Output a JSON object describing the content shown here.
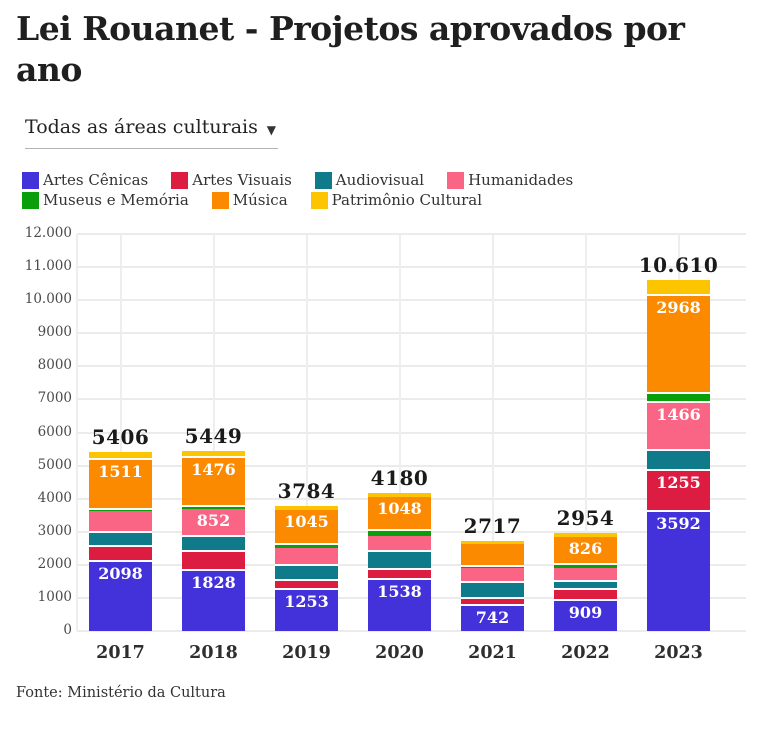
{
  "header": {
    "title": "Lei Rouanet - Projetos aprovados por ano"
  },
  "filter": {
    "value": "Todas as áreas culturais",
    "arrow_icon": "▼"
  },
  "footer": {
    "source": "Fonte: Ministério da Cultura"
  },
  "colors": {
    "artes_cenicas": "#4331d9",
    "artes_visuais": "#dc1c40",
    "audiovisual": "#0f7a8a",
    "humanidades": "#fa6585",
    "museus_memoria": "#0b9e0b",
    "musica": "#fb8a00",
    "patrimonio_cultural": "#fcc500",
    "grid": "#ebebeb",
    "text": "#222222"
  },
  "chart_data": {
    "type": "bar",
    "stacked": true,
    "title": "Lei Rouanet - Projetos aprovados por ano",
    "xlabel": "",
    "ylabel": "",
    "ylim": [
      0,
      12000
    ],
    "grid": true,
    "legend_position": "top",
    "categories": [
      "2017",
      "2018",
      "2019",
      "2020",
      "2021",
      "2022",
      "2023"
    ],
    "series": [
      {
        "name": "Artes Cênicas",
        "color": "#4331d9",
        "values": [
          2098,
          1828,
          1253,
          1538,
          742,
          909,
          3592
        ]
      },
      {
        "name": "Artes Visuais",
        "color": "#dc1c40",
        "values": [
          455,
          550,
          250,
          308,
          235,
          337,
          1255
        ]
      },
      {
        "name": "Audiovisual",
        "color": "#0f7a8a",
        "values": [
          410,
          455,
          470,
          545,
          470,
          242,
          590
        ]
      },
      {
        "name": "Humanidades",
        "color": "#fa6585",
        "values": [
          660,
          852,
          535,
          495,
          470,
          423,
          1466
        ]
      },
      {
        "name": "Museus e Memória",
        "color": "#0b9e0b",
        "values": [
          30,
          58,
          101,
          122,
          25,
          98,
          250
        ]
      },
      {
        "name": "Música",
        "color": "#fb8a00",
        "values": [
          1511,
          1476,
          1045,
          1048,
          680,
          826,
          2968
        ]
      },
      {
        "name": "Patrimônio Cultural",
        "color": "#fcc500",
        "values": [
          242,
          230,
          130,
          124,
          95,
          119,
          489
        ]
      }
    ],
    "totals": [
      5406,
      5449,
      3784,
      4180,
      2717,
      2954,
      10610
    ],
    "totals_display": [
      "5406",
      "5449",
      "3784",
      "4180",
      "2717",
      "2954",
      "10.610"
    ],
    "segment_labels": [
      {
        "0": "2098",
        "5": "1511"
      },
      {
        "0": "1828",
        "3": "852",
        "5": "1476"
      },
      {
        "0": "1253",
        "5": "1045"
      },
      {
        "0": "1538",
        "5": "1048"
      },
      {
        "0": "742"
      },
      {
        "0": "909",
        "5": "826"
      },
      {
        "0": "3592",
        "1": "1255",
        "3": "1466",
        "5": "2968"
      }
    ],
    "yticks": [
      "0",
      "1000",
      "2000",
      "3000",
      "4000",
      "5000",
      "6000",
      "7000",
      "8000",
      "9000",
      "10.000",
      "11.000",
      "12.000"
    ]
  },
  "legend_rows": [
    [
      {
        "label": "Artes Cênicas",
        "color": "#4331d9"
      },
      {
        "label": "Artes Visuais",
        "color": "#dc1c40"
      },
      {
        "label": "Audiovisual",
        "color": "#0f7a8a"
      },
      {
        "label": "Humanidades",
        "color": "#fa6585"
      }
    ],
    [
      {
        "label": "Museus e Memória",
        "color": "#0b9e0b"
      },
      {
        "label": "Música",
        "color": "#fb8a00"
      },
      {
        "label": "Patrimônio Cultural",
        "color": "#fcc500"
      }
    ]
  ]
}
